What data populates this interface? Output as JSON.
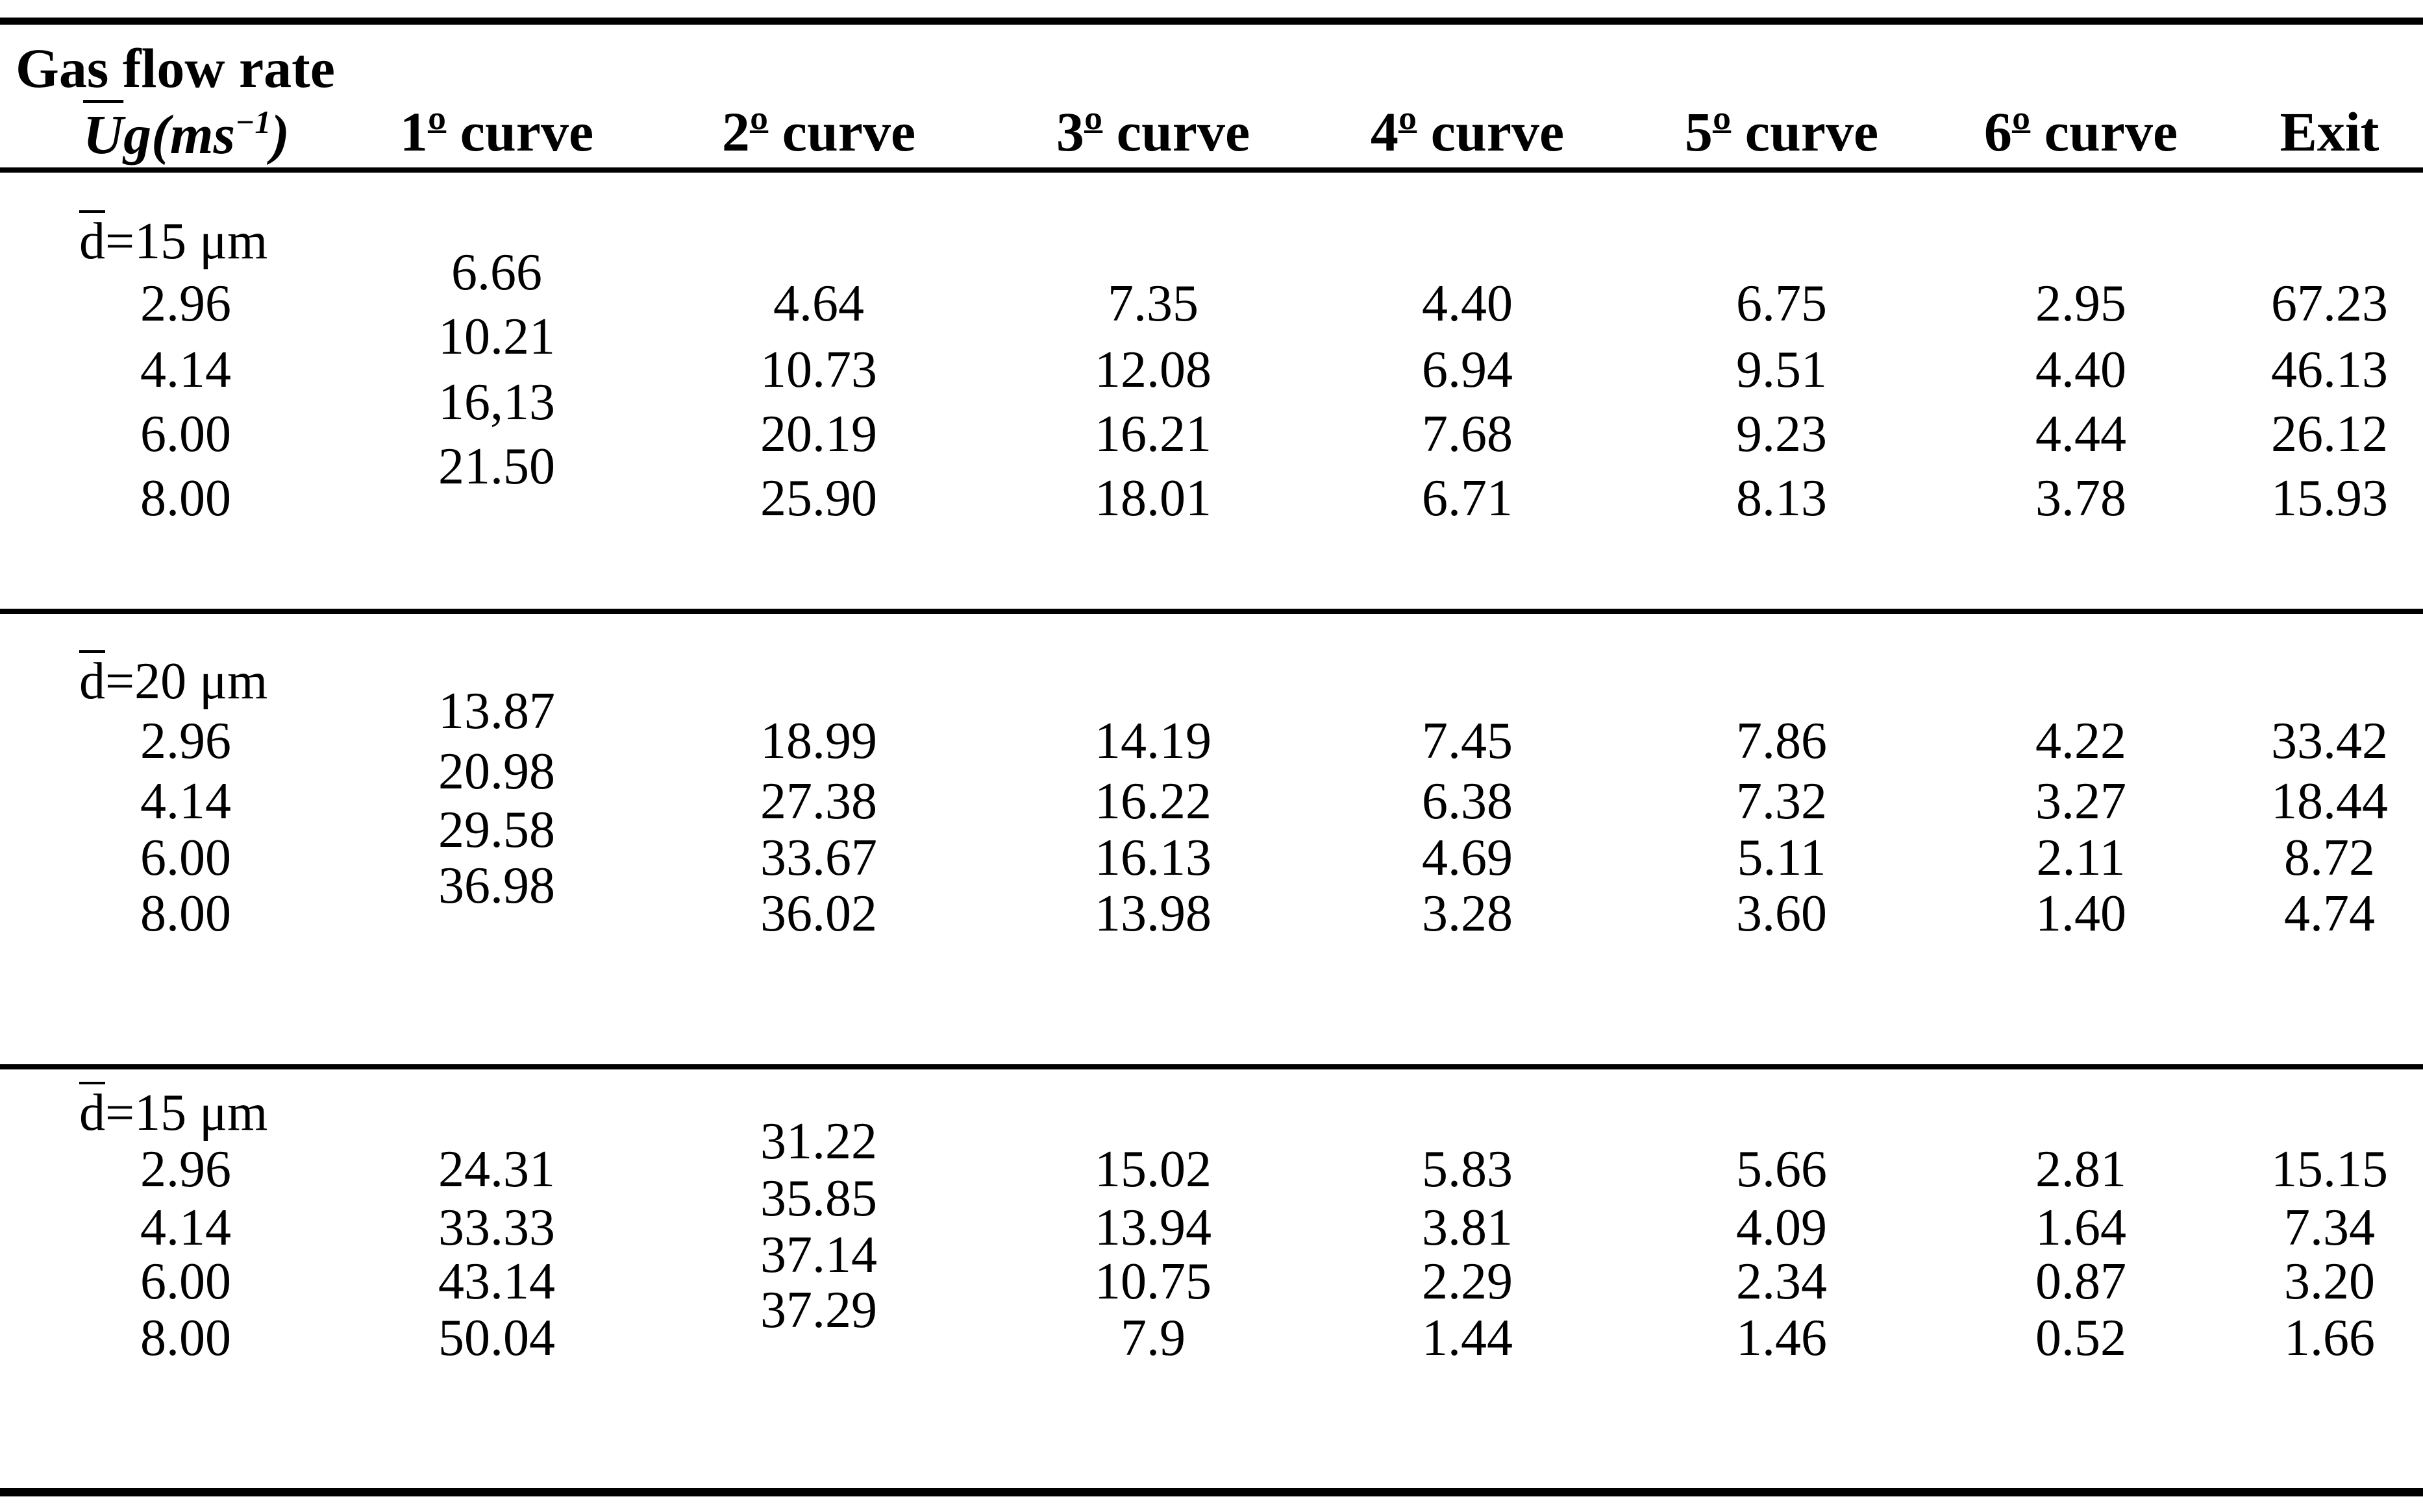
{
  "colors": {
    "background": "#ffffff",
    "text": "#000000",
    "rule": "#000000"
  },
  "header": {
    "title": "Gas flow rate",
    "unit_u": "U",
    "unit_rest": "g(ms",
    "unit_sup": "−1",
    "unit_close": ")",
    "columns": [
      {
        "num": "1",
        "ord": "º",
        "rest": " curve"
      },
      {
        "num": "2",
        "ord": "º",
        "rest": " curve"
      },
      {
        "num": "3",
        "ord": "º",
        "rest": " curve"
      },
      {
        "num": "4",
        "ord": "º",
        "rest": " curve"
      },
      {
        "num": "5",
        "ord": "º",
        "rest": " curve"
      },
      {
        "num": "6",
        "ord": "º",
        "rest": " curve"
      },
      {
        "num": "",
        "ord": "",
        "rest": "Exit"
      }
    ]
  },
  "sections": [
    {
      "label_d": "d",
      "label_rest": "=15 μm",
      "stagger_col": 0,
      "stagger_values": [
        "6.66",
        "10.21",
        "16,13",
        "21.50"
      ],
      "rows": [
        {
          "ug": "2.96",
          "cells": [
            "",
            "4.64",
            "7.35",
            "4.40",
            "6.75",
            "2.95",
            "67.23"
          ]
        },
        {
          "ug": "4.14",
          "cells": [
            "",
            "10.73",
            "12.08",
            "6.94",
            "9.51",
            "4.40",
            "46.13"
          ]
        },
        {
          "ug": "6.00",
          "cells": [
            "",
            "20.19",
            "16.21",
            "7.68",
            "9.23",
            "4.44",
            "26.12"
          ]
        },
        {
          "ug": "8.00",
          "cells": [
            "",
            "25.90",
            "18.01",
            "6.71",
            "8.13",
            "3.78",
            "15.93"
          ]
        }
      ]
    },
    {
      "label_d": "d",
      "label_rest": "=20 μm",
      "stagger_col": 0,
      "stagger_values": [
        "13.87",
        "20.98",
        "29.58",
        "36.98"
      ],
      "rows": [
        {
          "ug": "2.96",
          "cells": [
            "",
            "18.99",
            "14.19",
            "7.45",
            "7.86",
            "4.22",
            "33.42"
          ]
        },
        {
          "ug": "4.14",
          "cells": [
            "",
            "27.38",
            "16.22",
            "6.38",
            "7.32",
            "3.27",
            "18.44"
          ]
        },
        {
          "ug": "6.00",
          "cells": [
            "",
            "33.67",
            "16.13",
            "4.69",
            "5.11",
            "2.11",
            "8.72"
          ]
        },
        {
          "ug": "8.00",
          "cells": [
            "",
            "36.02",
            "13.98",
            "3.28",
            "3.60",
            "1.40",
            "4.74"
          ]
        }
      ]
    },
    {
      "label_d": "d",
      "label_rest": "=15 μm",
      "stagger_col": 1,
      "stagger_values": [
        "31.22",
        "35.85",
        "37.14",
        "37.29"
      ],
      "rows": [
        {
          "ug": "2.96",
          "cells": [
            "24.31",
            "",
            "15.02",
            "5.83",
            "5.66",
            "2.81",
            "15.15"
          ]
        },
        {
          "ug": "4.14",
          "cells": [
            "33.33",
            "",
            "13.94",
            "3.81",
            "4.09",
            "1.64",
            "7.34"
          ]
        },
        {
          "ug": "6.00",
          "cells": [
            "43.14",
            "",
            "10.75",
            "2.29",
            "2.34",
            "0.87",
            "3.20"
          ]
        },
        {
          "ug": "8.00",
          "cells": [
            "50.04",
            "",
            "7.9",
            "1.44",
            "1.46",
            "0.52",
            "1.66"
          ]
        }
      ]
    }
  ]
}
